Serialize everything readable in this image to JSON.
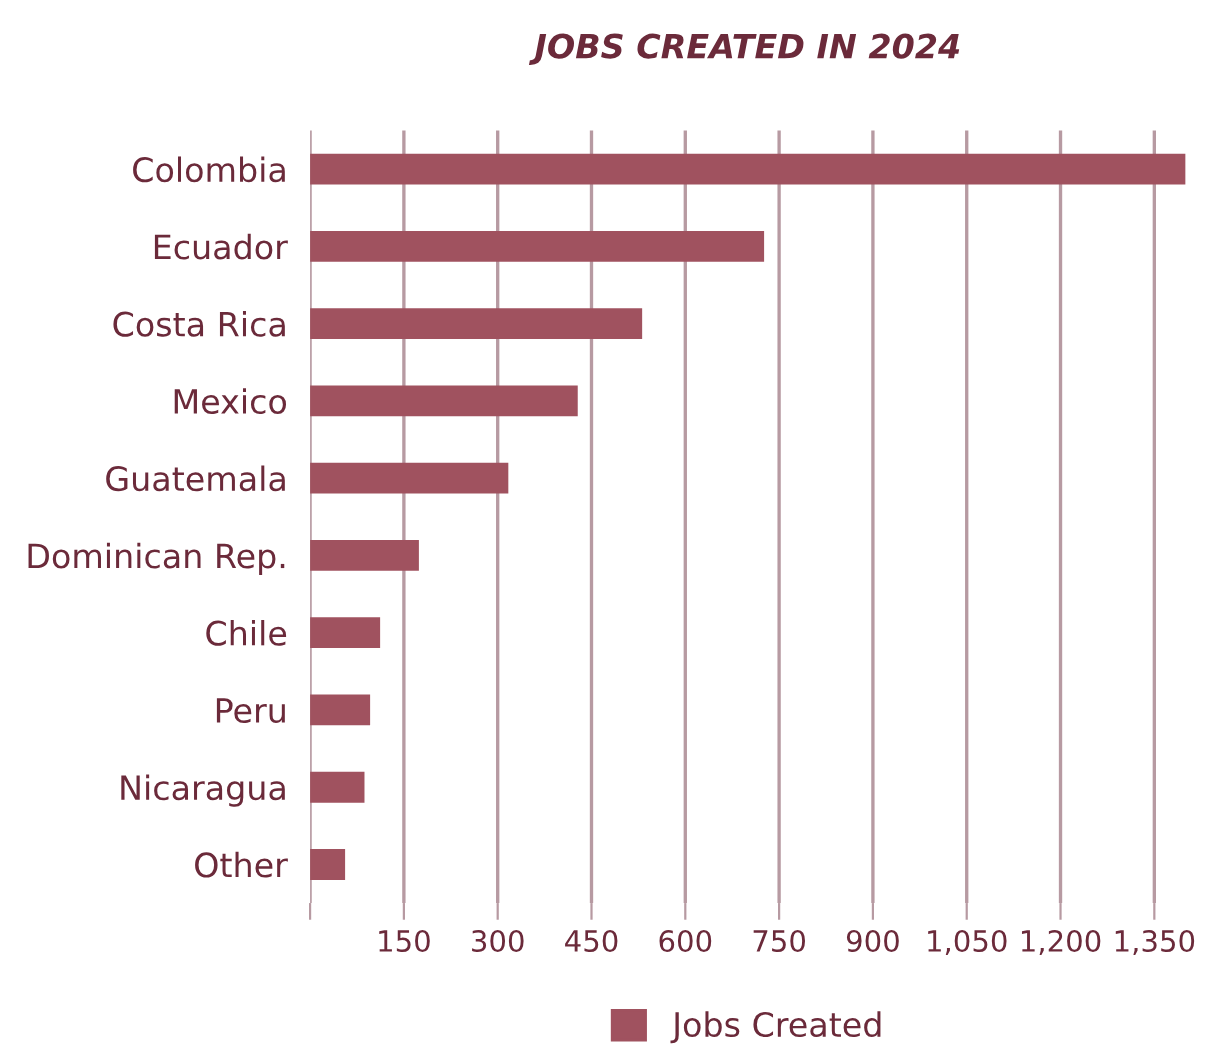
{
  "chart_data": {
    "type": "bar",
    "orientation": "horizontal",
    "title": "JOBS CREATED IN 2024",
    "categories": [
      "Colombia",
      "Ecuador",
      "Costa Rica",
      "Mexico",
      "Guatemala",
      "Dominican Rep.",
      "Chile",
      "Peru",
      "Nicaragua",
      "Other"
    ],
    "series": [
      {
        "name": "Jobs Created",
        "color": "#a0525f",
        "values": [
          1400,
          726,
          531,
          428,
          317,
          174,
          112,
          96,
          87,
          56
        ]
      }
    ],
    "xlim": [
      0,
      1400
    ],
    "xticks": [
      {
        "value": 0,
        "label": null
      },
      150,
      300,
      450,
      600,
      750,
      900,
      {
        "value": 1050,
        "label": "1,050"
      },
      {
        "value": 1200,
        "label": "1,200"
      },
      {
        "value": 1350,
        "label": "1,350"
      }
    ],
    "grid": "x",
    "legend": "bottom"
  }
}
